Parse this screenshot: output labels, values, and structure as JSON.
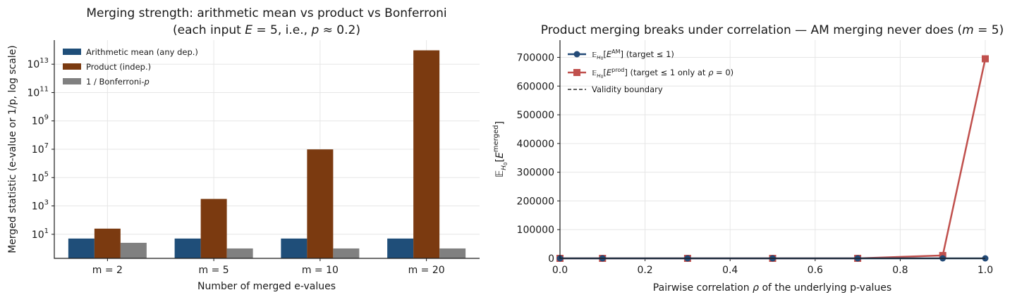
{
  "colors": {
    "am": "#1f4e79",
    "prod": "#7b3a10",
    "bonf": "#808080",
    "am_line": "#234a77",
    "prod_line": "#c0504d",
    "boundary": "#000000"
  },
  "chart_data": [
    {
      "type": "bar",
      "title": "Merging strength: arithmetic mean vs product vs Bonferroni",
      "subtitle": "(each input E = 5, i.e., p ≈ 0.2)",
      "xlabel": "Number of merged e-values",
      "ylabel": "Merged statistic (e-value or 1/p, log scale)",
      "yscale": "log",
      "ylim": [
        0.2,
        500000000000000.0
      ],
      "yticks": [
        {
          "value": 10,
          "base": "10",
          "exp": "1"
        },
        {
          "value": 1000,
          "base": "10",
          "exp": "3"
        },
        {
          "value": 100000,
          "base": "10",
          "exp": "5"
        },
        {
          "value": 10000000,
          "base": "10",
          "exp": "7"
        },
        {
          "value": 1000000000,
          "base": "10",
          "exp": "9"
        },
        {
          "value": 100000000000,
          "base": "10",
          "exp": "11"
        },
        {
          "value": 10000000000000,
          "base": "10",
          "exp": "13"
        }
      ],
      "categories": [
        "m = 2",
        "m = 5",
        "m = 10",
        "m = 20"
      ],
      "series": [
        {
          "name": "Arithmetic mean (any dep.)",
          "values": [
            5,
            5,
            5,
            5
          ]
        },
        {
          "name": "Product (indep.)",
          "values": [
            25,
            3125,
            9765625,
            95367431640625
          ]
        },
        {
          "name": "1 / Bonferroni-p",
          "values": [
            2.5,
            1,
            1,
            1
          ]
        }
      ],
      "legend": "top-left",
      "grid": true
    },
    {
      "type": "line",
      "title": "Product merging breaks under correlation — AM merging never does (m = 5)",
      "xlabel": "Pairwise correlation ρ of the underlying p-values",
      "ylabel": "E_H0[E^merged]",
      "xlim": [
        0.0,
        1.0
      ],
      "ylim": [
        0,
        760000
      ],
      "xticks": [
        "0.0",
        "0.2",
        "0.4",
        "0.6",
        "0.8",
        "1.0"
      ],
      "yticks": [
        "0",
        "100000",
        "200000",
        "300000",
        "400000",
        "500000",
        "600000",
        "700000"
      ],
      "x": [
        0.0,
        0.1,
        0.3,
        0.5,
        0.7,
        0.9,
        1.0
      ],
      "series": [
        {
          "name": "E_H0[E^AM] (target ≤ 1)",
          "values": [
            1,
            1,
            1,
            1,
            1,
            1,
            1
          ]
        },
        {
          "name": "E_H0[E^prod] (target ≤ 1 only at ρ = 0)",
          "values": [
            1,
            2,
            4,
            10,
            60,
            10000,
            695000
          ]
        }
      ],
      "boundary": {
        "name": "Validity boundary",
        "value": 1
      },
      "legend": "top-left",
      "grid": true
    }
  ]
}
